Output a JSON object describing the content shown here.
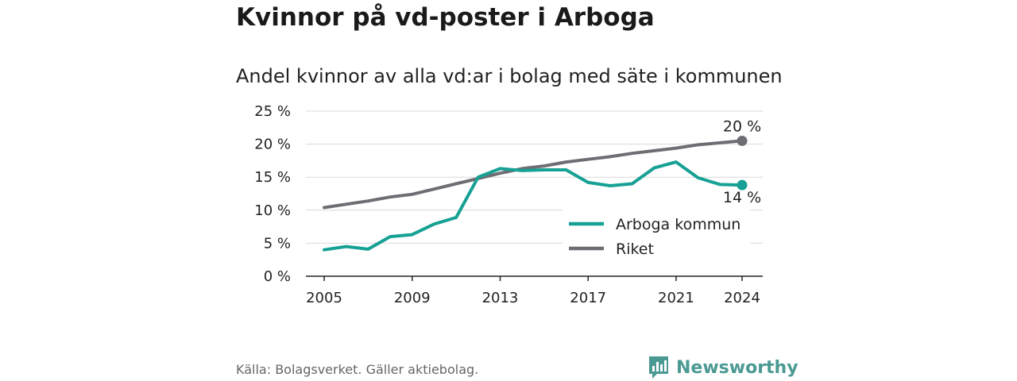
{
  "title": "Kvinnor på vd-poster i Arboga",
  "subtitle": "Andel kvinnor av alla vd:ar i bolag med säte i kommunen",
  "source": "Källa: Bolagsverket. Gäller aktiebolag.",
  "logo": {
    "text": "Newsworthy",
    "icon": "bar-chart-icon",
    "color": "#4a9a93"
  },
  "chart_data": {
    "type": "line",
    "x": [
      2005,
      2006,
      2007,
      2008,
      2009,
      2010,
      2011,
      2012,
      2013,
      2014,
      2015,
      2016,
      2017,
      2018,
      2019,
      2020,
      2021,
      2022,
      2023,
      2024
    ],
    "series": [
      {
        "name": "Arboga kommun",
        "color": "#16a194",
        "values": [
          4.0,
          4.5,
          4.1,
          6.0,
          6.3,
          7.9,
          8.9,
          15.0,
          16.3,
          16.0,
          16.1,
          16.1,
          14.2,
          13.7,
          14.0,
          16.4,
          17.3,
          14.9,
          13.9,
          13.8
        ],
        "end_label": "14 %"
      },
      {
        "name": "Riket",
        "color": "#6e6d73",
        "values": [
          10.4,
          10.9,
          11.4,
          12.0,
          12.4,
          13.2,
          14.0,
          14.8,
          15.6,
          16.3,
          16.7,
          17.3,
          17.7,
          18.1,
          18.6,
          19.0,
          19.4,
          19.9,
          20.2,
          20.5
        ],
        "end_label": "20 %"
      }
    ],
    "ylim": [
      0,
      25
    ],
    "y_ticks": [
      0,
      5,
      10,
      15,
      20,
      25
    ],
    "y_tick_labels": [
      "0 %",
      "5 %",
      "10 %",
      "15 %",
      "20 %",
      "25 %"
    ],
    "x_ticks": [
      2005,
      2009,
      2013,
      2017,
      2021,
      2024
    ],
    "x_tick_labels": [
      "2005",
      "2009",
      "2013",
      "2017",
      "2021",
      "2024"
    ],
    "grid": true,
    "legend": {
      "position": "bottom-right",
      "entries": [
        "Arboga kommun",
        "Riket"
      ]
    },
    "xlabel": "",
    "ylabel": ""
  }
}
